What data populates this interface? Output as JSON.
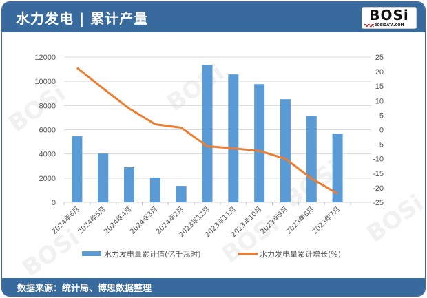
{
  "header": {
    "title": "水力发电 | 累计产量",
    "logo_text": "BOSi",
    "logo_sub": "BOSIDATA.COM"
  },
  "footer": {
    "source": "数据来源：统计局、博思数据整理"
  },
  "colors": {
    "header_bg": "#386a9e",
    "bar": "#5b9bd5",
    "line": "#ed7d31",
    "grid": "#d9d9d9",
    "text": "#595959"
  },
  "chart_data": {
    "type": "bar+line",
    "title": "水力发电 | 累计产量",
    "categories": [
      "2024年6月",
      "2024年5月",
      "2024年4月",
      "2024年3月",
      "2024年2月",
      "2023年12月",
      "2023年11月",
      "2023年10月",
      "2023年9月",
      "2023年8月",
      "2023年7月"
    ],
    "series": [
      {
        "name": "水力发电量累计值(亿千瓦时)",
        "type": "bar",
        "axis": "left",
        "color": "#5b9bd5",
        "values": [
          5460,
          4030,
          2900,
          2050,
          1360,
          11360,
          10570,
          9770,
          8520,
          7160,
          5680
        ]
      },
      {
        "name": "水力发电量累计增长(%)",
        "type": "line",
        "axis": "right",
        "color": "#ed7d31",
        "values": [
          21.3,
          14.2,
          7.3,
          1.9,
          0.7,
          -5.7,
          -6.4,
          -7.3,
          -10.0,
          -16.8,
          -22.0
        ]
      }
    ],
    "left_axis": {
      "min": 0,
      "max": 12000,
      "ticks": [
        0,
        2000,
        4000,
        6000,
        8000,
        10000,
        12000
      ]
    },
    "right_axis": {
      "min": -25,
      "max": 25,
      "ticks": [
        25,
        20,
        15,
        10,
        5,
        0,
        -5,
        -10,
        -15,
        -20,
        -25
      ]
    },
    "grid": true,
    "legend_position": "bottom",
    "xlabel": "",
    "ylabel": ""
  }
}
